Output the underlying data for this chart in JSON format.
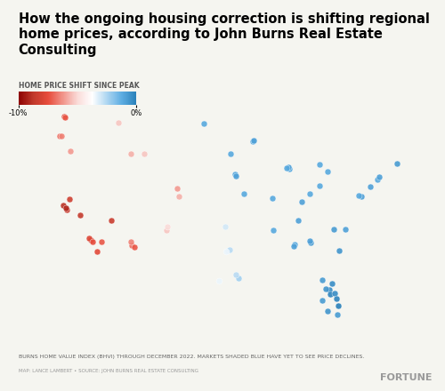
{
  "title": "How the ongoing housing correction is shifting regional\nhome prices, according to John Burns Real Estate Consulting",
  "colorbar_label": "HOME PRICE SHIFT SINCE PEAK",
  "colorbar_min": -10,
  "colorbar_max": 0,
  "colorbar_min_label": "-10%",
  "colorbar_max_label": "0%",
  "footnote1": "BURNS HOME VALUE INDEX (BHVI) THROUGH DECEMBER 2022. MARKETS SHADED BLUE HAVE YET TO SEE PRICE DECLINES.",
  "footnote2": "MAP: LANCE LAMBERT • SOURCE: JOHN BURNS REAL ESTATE CONSULTING",
  "brand": "FORTUNE",
  "bg_color": "#f5f5f0",
  "title_fontsize": 10.5,
  "dots": [
    {
      "lon": -122.4,
      "lat": 37.8,
      "val": -9.5
    },
    {
      "lon": -121.9,
      "lat": 37.3,
      "val": -9.0
    },
    {
      "lon": -118.2,
      "lat": 34.0,
      "val": -8.5
    },
    {
      "lon": -117.2,
      "lat": 32.7,
      "val": -8.0
    },
    {
      "lon": -119.8,
      "lat": 36.7,
      "val": -9.2
    },
    {
      "lon": -121.5,
      "lat": 38.5,
      "val": -8.8
    },
    {
      "lon": -122.0,
      "lat": 37.5,
      "val": -9.8
    },
    {
      "lon": -118.5,
      "lat": 34.2,
      "val": -8.2
    },
    {
      "lon": -117.9,
      "lat": 33.8,
      "val": -7.8
    },
    {
      "lon": -116.5,
      "lat": 33.8,
      "val": -7.5
    },
    {
      "lon": -115.1,
      "lat": 36.2,
      "val": -9.0
    },
    {
      "lon": -111.9,
      "lat": 33.4,
      "val": -7.0
    },
    {
      "lon": -112.1,
      "lat": 33.8,
      "val": -6.5
    },
    {
      "lon": -111.5,
      "lat": 33.2,
      "val": -7.5
    },
    {
      "lon": -104.9,
      "lat": 39.7,
      "val": -6.0
    },
    {
      "lon": -104.7,
      "lat": 38.8,
      "val": -5.5
    },
    {
      "lon": -122.3,
      "lat": 47.6,
      "val": -8.0
    },
    {
      "lon": -122.2,
      "lat": 47.5,
      "val": -7.5
    },
    {
      "lon": -123.0,
      "lat": 45.5,
      "val": -7.0
    },
    {
      "lon": -122.7,
      "lat": 45.5,
      "val": -6.5
    },
    {
      "lon": -121.3,
      "lat": 43.8,
      "val": -6.0
    },
    {
      "lon": -114.0,
      "lat": 46.9,
      "val": -5.0
    },
    {
      "lon": -112.0,
      "lat": 43.5,
      "val": -5.5
    },
    {
      "lon": -110.0,
      "lat": 43.5,
      "val": -5.0
    },
    {
      "lon": -106.6,
      "lat": 35.1,
      "val": -5.0
    },
    {
      "lon": -106.4,
      "lat": 35.5,
      "val": -4.5
    },
    {
      "lon": -97.5,
      "lat": 35.5,
      "val": -2.0
    },
    {
      "lon": -98.5,
      "lat": 29.5,
      "val": -2.5
    },
    {
      "lon": -97.1,
      "lat": 32.8,
      "val": -2.0
    },
    {
      "lon": -96.8,
      "lat": 32.9,
      "val": -1.5
    },
    {
      "lon": -97.3,
      "lat": 32.7,
      "val": -2.5
    },
    {
      "lon": -95.4,
      "lat": 29.8,
      "val": -1.0
    },
    {
      "lon": -95.8,
      "lat": 30.2,
      "val": -1.5
    },
    {
      "lon": -86.8,
      "lat": 33.5,
      "val": 0.5
    },
    {
      "lon": -86.9,
      "lat": 33.3,
      "val": 0.8
    },
    {
      "lon": -84.4,
      "lat": 33.7,
      "val": 1.0
    },
    {
      "lon": -84.5,
      "lat": 33.9,
      "val": 0.8
    },
    {
      "lon": -81.4,
      "lat": 28.5,
      "val": 1.5
    },
    {
      "lon": -80.2,
      "lat": 25.8,
      "val": 1.0
    },
    {
      "lon": -81.7,
      "lat": 26.2,
      "val": 1.2
    },
    {
      "lon": -82.5,
      "lat": 27.3,
      "val": 1.0
    },
    {
      "lon": -81.0,
      "lat": 29.2,
      "val": 1.5
    },
    {
      "lon": -80.1,
      "lat": 26.7,
      "val": 2.0
    },
    {
      "lon": -81.3,
      "lat": 28.0,
      "val": 1.8
    },
    {
      "lon": -82.0,
      "lat": 28.6,
      "val": 1.2
    },
    {
      "lon": -80.6,
      "lat": 28.1,
      "val": 1.5
    },
    {
      "lon": -82.5,
      "lat": 29.6,
      "val": 1.0
    },
    {
      "lon": -80.3,
      "lat": 27.5,
      "val": 1.8
    },
    {
      "lon": -87.6,
      "lat": 41.8,
      "val": 0.5
    },
    {
      "lon": -87.8,
      "lat": 42.0,
      "val": 0.8
    },
    {
      "lon": -83.0,
      "lat": 42.3,
      "val": 0.5
    },
    {
      "lon": -81.7,
      "lat": 41.5,
      "val": 0.5
    },
    {
      "lon": -75.2,
      "lat": 39.9,
      "val": 0.8
    },
    {
      "lon": -74.0,
      "lat": 40.7,
      "val": 0.5
    },
    {
      "lon": -73.8,
      "lat": 41.0,
      "val": 0.8
    },
    {
      "lon": -71.1,
      "lat": 42.4,
      "val": 1.0
    },
    {
      "lon": -76.5,
      "lat": 38.8,
      "val": 0.8
    },
    {
      "lon": -77.0,
      "lat": 38.9,
      "val": 0.5
    },
    {
      "lon": -79.0,
      "lat": 35.2,
      "val": 0.8
    },
    {
      "lon": -80.8,
      "lat": 35.2,
      "val": 1.0
    },
    {
      "lon": -80.0,
      "lat": 32.8,
      "val": 1.2
    },
    {
      "lon": -86.2,
      "lat": 36.2,
      "val": 0.8
    },
    {
      "lon": -90.1,
      "lat": 35.1,
      "val": 0.5
    },
    {
      "lon": -83.0,
      "lat": 40.0,
      "val": 0.5
    },
    {
      "lon": -85.7,
      "lat": 38.2,
      "val": 0.8
    },
    {
      "lon": -84.5,
      "lat": 39.1,
      "val": 0.5
    },
    {
      "lon": -93.3,
      "lat": 44.9,
      "val": 0.5
    },
    {
      "lon": -93.1,
      "lat": 45.0,
      "val": 0.8
    },
    {
      "lon": -96.7,
      "lat": 43.5,
      "val": 0.5
    },
    {
      "lon": -100.8,
      "lat": 46.8,
      "val": 0.5
    },
    {
      "lon": -96.0,
      "lat": 41.3,
      "val": 0.5
    },
    {
      "lon": -95.9,
      "lat": 41.1,
      "val": 0.8
    },
    {
      "lon": -90.2,
      "lat": 38.6,
      "val": 0.5
    },
    {
      "lon": -94.6,
      "lat": 39.1,
      "val": 0.5
    },
    {
      "lon": -88.0,
      "lat": 41.9,
      "val": 0.5
    },
    {
      "lon": -157.8,
      "lat": 21.3,
      "val": -4.0
    },
    {
      "lon": -160.0,
      "lat": 21.5,
      "val": -3.5
    },
    {
      "lon": -149.9,
      "lat": 61.2,
      "val": -3.0
    }
  ]
}
